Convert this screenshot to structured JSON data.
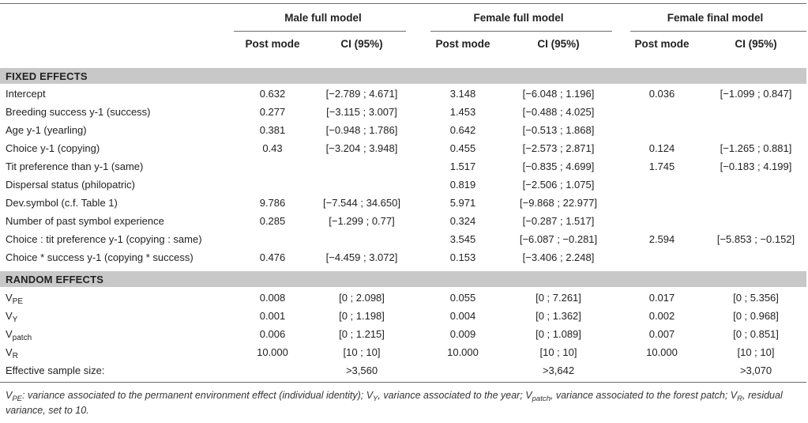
{
  "header": {
    "groups": [
      "Male full model",
      "Female full model",
      "Female final model"
    ],
    "post_mode": "Post mode",
    "ci": "CI (95%)"
  },
  "sections": {
    "fixed": "FIXED EFFECTS",
    "random": "RANDOM EFFECTS"
  },
  "fixed_rows": [
    {
      "label": "Intercept",
      "c1": "0.632",
      "c2": "[−2.789 ; 4.671]",
      "c3": "3.148",
      "c4": "[−6.048 ; 1.196]",
      "c5": "0.036",
      "c6": "[−1.099 ; 0.847]"
    },
    {
      "label": "Breeding success y-1 (success)",
      "c1": "0.277",
      "c2": "[−3.115 ; 3.007]",
      "c3": "1.453",
      "c4": "[−0.488 ; 4.025]",
      "c5": "",
      "c6": ""
    },
    {
      "label": "Age y-1 (yearling)",
      "c1": "0.381",
      "c2": "[−0.948 ; 1.786]",
      "c3": "0.642",
      "c4": "[−0.513 ; 1.868]",
      "c5": "",
      "c6": ""
    },
    {
      "label": "Choice y-1 (copying)",
      "c1": "0.43",
      "c2": "[−3.204 ; 3.948]",
      "c3": "0.455",
      "c4": "[−2.573 ; 2.871]",
      "c5": "0.124",
      "c6": "[−1.265 ; 0.881]"
    },
    {
      "label": "Tit preference than y-1 (same)",
      "c1": "",
      "c2": "",
      "c3": "1.517",
      "c4": "[−0.835 ; 4.699]",
      "c5": "1.745",
      "c6": "[−0.183 ; 4.199]"
    },
    {
      "label": "Dispersal status (philopatric)",
      "c1": "",
      "c2": "",
      "c3": "0.819",
      "c4": "[−2.506 ; 1.075]",
      "c5": "",
      "c6": ""
    },
    {
      "label": "Dev.symbol (c.f. Table 1)",
      "c1": "9.786",
      "c2": "[−7.544 ; 34.650]",
      "c3": "5.971",
      "c4": "[−9.868 ; 22.977]",
      "c5": "",
      "c6": ""
    },
    {
      "label": "Number of past symbol experience",
      "c1": "0.285",
      "c2": "[−1.299 ; 0.77]",
      "c3": "0.324",
      "c4": "[−0.287 ; 1.517]",
      "c5": "",
      "c6": ""
    },
    {
      "label": "Choice : tit preference y-1 (copying : same)",
      "c1": "",
      "c2": "",
      "c3": "3.545",
      "c4": "[−6.087 ; −0.281]",
      "c5": "2.594",
      "c6": "[−5.853 ; −0.152]"
    },
    {
      "label": "Choice * success y-1 (copying * success)",
      "c1": "0.476",
      "c2": "[−4.459 ; 3.072]",
      "c3": "0.153",
      "c4": "[−3.406 ; 2.248]",
      "c5": "",
      "c6": ""
    }
  ],
  "random_rows": [
    {
      "label": "V",
      "sub": "PE",
      "c1": "0.008",
      "c2": "[0 ; 2.098]",
      "c3": "0.055",
      "c4": "[0 ; 7.261]",
      "c5": "0.017",
      "c6": "[0 ; 5.356]"
    },
    {
      "label": "V",
      "sub": "Y",
      "c1": "0.001",
      "c2": "[0 ; 1.198]",
      "c3": "0.004",
      "c4": "[0 ; 1.362]",
      "c5": "0.002",
      "c6": "[0 ; 0.968]"
    },
    {
      "label": "V",
      "sub": "patch",
      "c1": "0.006",
      "c2": "[0 ; 1.215]",
      "c3": "0.009",
      "c4": "[0 ; 1.089]",
      "c5": "0.007",
      "c6": "[0 ; 0.851]"
    },
    {
      "label": "V",
      "sub": "R",
      "c1": "10.000",
      "c2": "[10 ; 10]",
      "c3": "10.000",
      "c4": "[10 ; 10]",
      "c5": "10.000",
      "c6": "[10 ; 10]"
    }
  ],
  "ess": {
    "label": "Effective sample size:",
    "c2": ">3,560",
    "c4": ">3,642",
    "c6": ">3,070"
  },
  "footnote": {
    "v1": "V",
    "s1": "PE",
    "t1": ": variance associated to the permanent environment effect (individual identity); ",
    "v2": "V",
    "s2": "Y",
    "t2": ", variance associated to the year; ",
    "v3": "V",
    "s3": "patch",
    "t3": ", variance associated to the forest patch; ",
    "v4": "V",
    "s4": "R",
    "t4": ", residual variance, set to 10."
  }
}
